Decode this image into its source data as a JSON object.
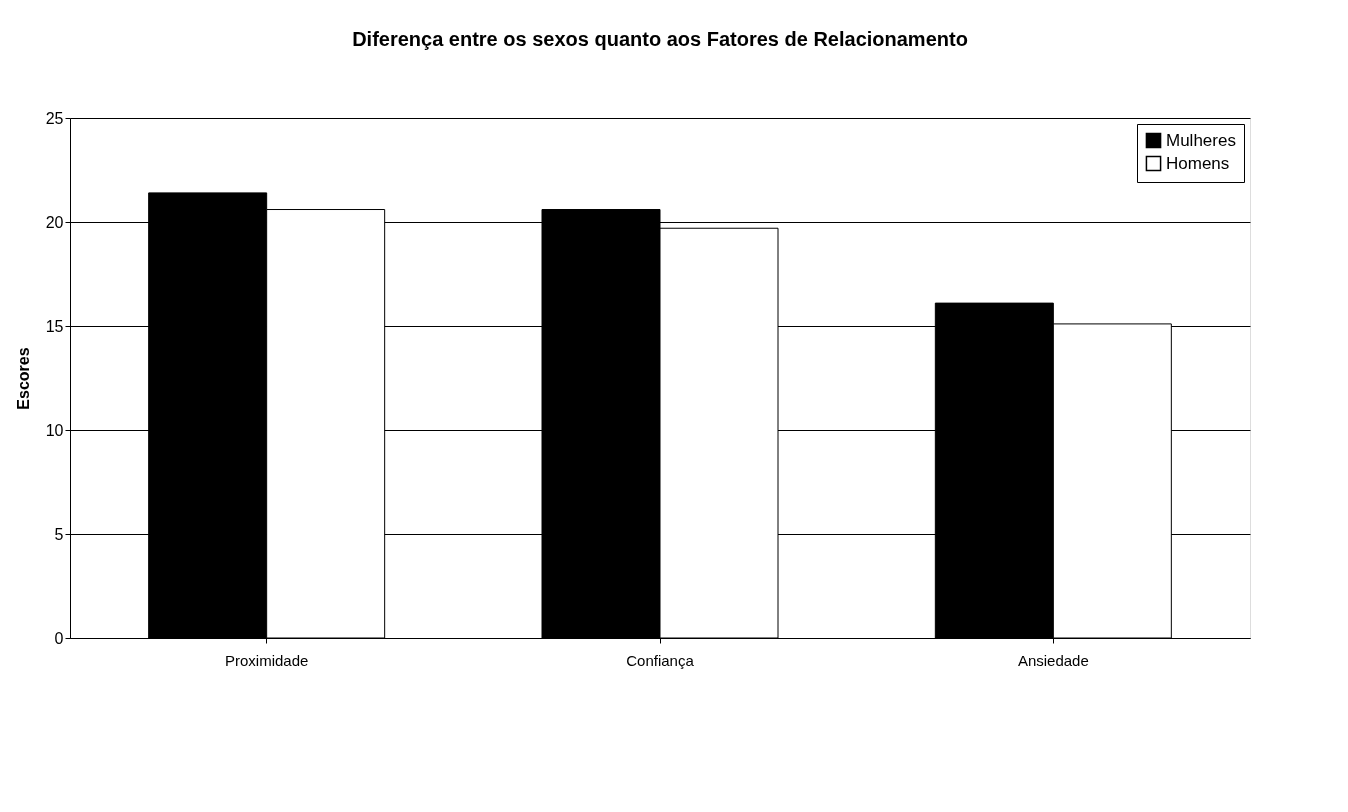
{
  "chart_data": {
    "type": "bar",
    "title": "Diferença entre os sexos quanto aos Fatores de Relacionamento",
    "ylabel": "Escores",
    "categories": [
      "Proximidade",
      "Confiança",
      "Ansiedade"
    ],
    "series": [
      {
        "name": "Mulheres",
        "color": "#000000",
        "values": [
          21.4,
          20.6,
          16.1
        ]
      },
      {
        "name": "Homens",
        "color": "#ffffff",
        "values": [
          20.6,
          19.7,
          15.1
        ]
      }
    ],
    "ylim": [
      0,
      25
    ],
    "yticks": [
      0,
      5,
      10,
      15,
      20,
      25
    ],
    "grid": "y",
    "legend": "top right"
  }
}
